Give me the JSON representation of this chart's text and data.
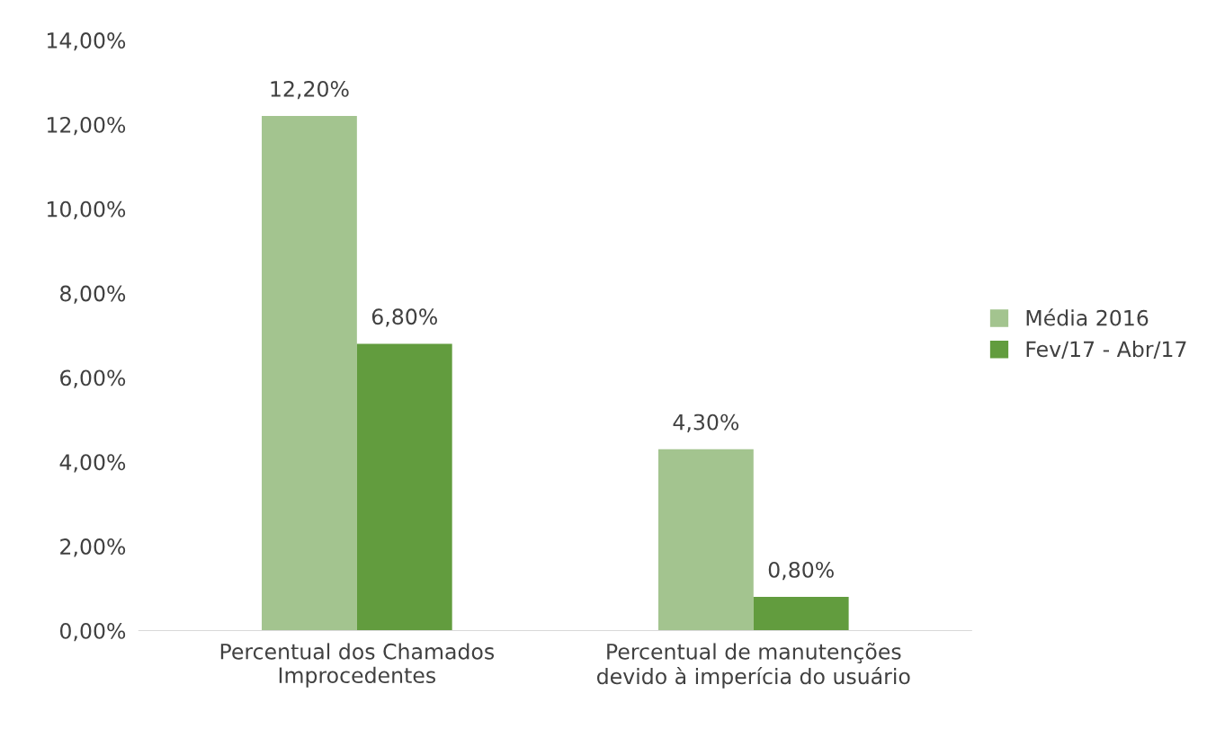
{
  "chart_data": {
    "type": "bar",
    "categories": [
      "Percentual dos Chamados\nImprocedentes",
      "Percentual de manutenções\ndevido à imperícia do usuário"
    ],
    "series": [
      {
        "name": "Média 2016",
        "color": "#a3c48f",
        "values": [
          12.2,
          4.3
        ],
        "value_labels": [
          "12,20%",
          "4,30%"
        ]
      },
      {
        "name": "Fev/17 - Abr/17",
        "color": "#629c3e",
        "values": [
          6.8,
          0.8
        ],
        "value_labels": [
          "6,80%",
          "0,80%"
        ]
      }
    ],
    "ylim": [
      0,
      14
    ],
    "yticks": [
      {
        "value": 0,
        "label": "0,00%"
      },
      {
        "value": 2,
        "label": "2,00%"
      },
      {
        "value": 4,
        "label": "4,00%"
      },
      {
        "value": 6,
        "label": "6,00%"
      },
      {
        "value": 8,
        "label": "8,00%"
      },
      {
        "value": 10,
        "label": "10,00%"
      },
      {
        "value": 12,
        "label": "12,00%"
      },
      {
        "value": 14,
        "label": "14,00%"
      }
    ],
    "grid": false,
    "legend": "right"
  }
}
